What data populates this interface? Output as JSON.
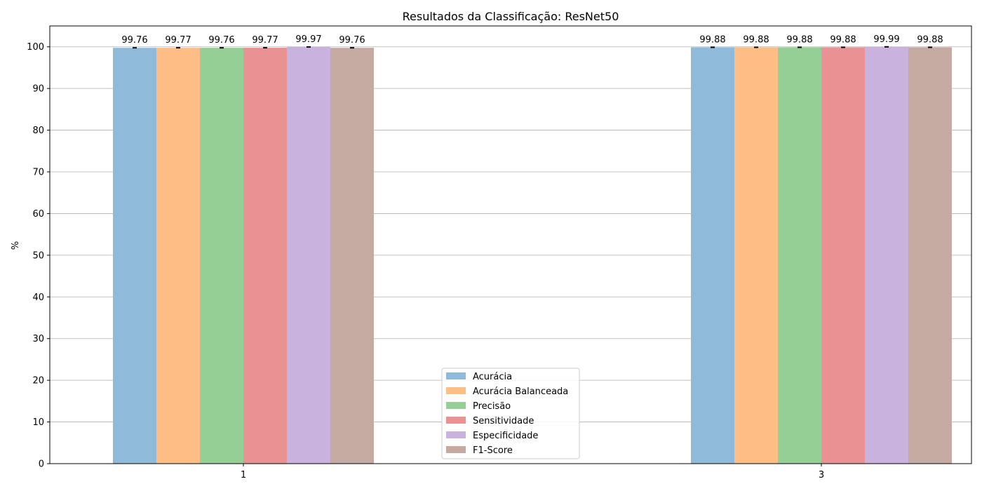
{
  "chart_data": {
    "type": "bar",
    "title": "Resultados da Classificação: ResNet50",
    "xlabel": "",
    "ylabel": "%",
    "categories": [
      "1",
      "3"
    ],
    "ylim": [
      0,
      105
    ],
    "yticks": [
      0,
      10,
      20,
      30,
      40,
      50,
      60,
      70,
      80,
      90,
      100
    ],
    "grid": true,
    "legend_position": "lower-center",
    "series": [
      {
        "name": "Acurácia",
        "color": "#8fbad9",
        "values": [
          99.76,
          99.88
        ],
        "labels": [
          "99.76",
          "99.88"
        ]
      },
      {
        "name": "Acurácia Balanceada",
        "color": "#ffbe86",
        "values": [
          99.77,
          99.88
        ],
        "labels": [
          "99.77",
          "99.88"
        ]
      },
      {
        "name": "Precisão",
        "color": "#95cf95",
        "values": [
          99.76,
          99.88
        ],
        "labels": [
          "99.76",
          "99.88"
        ]
      },
      {
        "name": "Sensitividade",
        "color": "#ea9293",
        "values": [
          99.77,
          99.88
        ],
        "labels": [
          "99.77",
          "99.88"
        ]
      },
      {
        "name": "Especificidade",
        "color": "#c9b3de",
        "values": [
          99.97,
          99.99
        ],
        "labels": [
          "99.97",
          "99.99"
        ]
      },
      {
        "name": "F1-Score",
        "color": "#c5aaa2",
        "values": [
          99.76,
          99.88
        ],
        "labels": [
          "99.76",
          "99.88"
        ]
      }
    ]
  }
}
